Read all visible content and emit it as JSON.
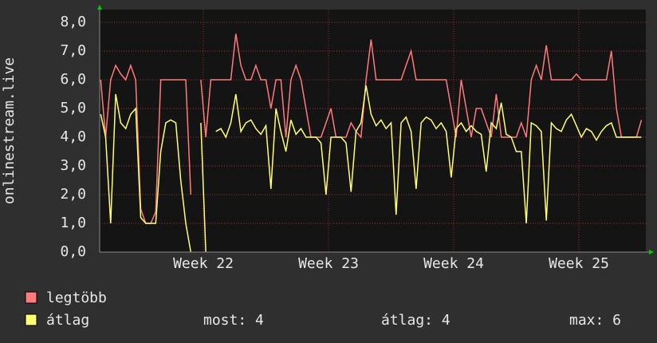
{
  "chart_data": {
    "type": "line",
    "ylabel": "onlinestream.live",
    "xlim": [
      21.172,
      25.535
    ],
    "xticks": [
      {
        "value": 22,
        "label": "Week 22"
      },
      {
        "value": 23,
        "label": "Week 23"
      },
      {
        "value": 24,
        "label": "Week 24"
      },
      {
        "value": 25,
        "label": "Week 25"
      }
    ],
    "ylim": [
      0,
      8
    ],
    "yticks": [
      {
        "value": 0,
        "label": "0,0"
      },
      {
        "value": 1,
        "label": "1,0"
      },
      {
        "value": 2,
        "label": "2,0"
      },
      {
        "value": 3,
        "label": "3,0"
      },
      {
        "value": 4,
        "label": "4,0"
      },
      {
        "value": 5,
        "label": "5,0"
      },
      {
        "value": 6,
        "label": "6,0"
      },
      {
        "value": 7,
        "label": "7,0"
      },
      {
        "value": 8,
        "label": "8,0"
      }
    ],
    "grid": true,
    "x": [
      21.18,
      21.22,
      21.26,
      21.3,
      21.34,
      21.38,
      21.42,
      21.46,
      21.5,
      21.54,
      21.58,
      21.62,
      21.66,
      21.7,
      21.74,
      21.78,
      21.82,
      21.86,
      21.9,
      21.94,
      21.98,
      22.02,
      22.06,
      22.1,
      22.14,
      22.18,
      22.22,
      22.26,
      22.3,
      22.34,
      22.38,
      22.42,
      22.46,
      22.5,
      22.54,
      22.58,
      22.62,
      22.66,
      22.7,
      22.74,
      22.78,
      22.82,
      22.86,
      22.9,
      22.94,
      22.98,
      23.02,
      23.06,
      23.1,
      23.14,
      23.18,
      23.22,
      23.26,
      23.3,
      23.34,
      23.38,
      23.42,
      23.46,
      23.5,
      23.54,
      23.58,
      23.62,
      23.66,
      23.7,
      23.74,
      23.78,
      23.82,
      23.86,
      23.9,
      23.94,
      23.98,
      24.02,
      24.06,
      24.1,
      24.14,
      24.18,
      24.22,
      24.26,
      24.3,
      24.34,
      24.38,
      24.42,
      24.46,
      24.5,
      24.54,
      24.58,
      24.62,
      24.66,
      24.7,
      24.74,
      24.78,
      24.82,
      24.86,
      24.9,
      24.94,
      24.98,
      25.02,
      25.06,
      25.1,
      25.14,
      25.18,
      25.22,
      25.26,
      25.3,
      25.34,
      25.38,
      25.42,
      25.46,
      25.5
    ],
    "series": [
      {
        "name": "legtöbb",
        "color": "#ff7a7a",
        "values": [
          6,
          4,
          6,
          6.5,
          6.2,
          6,
          6.5,
          6,
          1.5,
          1,
          1,
          1.4,
          6,
          6,
          6,
          6,
          6,
          6,
          2,
          null,
          6,
          4,
          6,
          6,
          6,
          6,
          6,
          7.6,
          6.5,
          6,
          6,
          6.5,
          6,
          6,
          5,
          6,
          6,
          4,
          6,
          6.5,
          6,
          5,
          4,
          4,
          4,
          4.5,
          5,
          4,
          4,
          4,
          4.5,
          4.2,
          4,
          6,
          7.4,
          6,
          6,
          6,
          6,
          6,
          6,
          6.5,
          7,
          6,
          6,
          6,
          6,
          6,
          6,
          6,
          5,
          4,
          6,
          5,
          4,
          5,
          5,
          4.5,
          4,
          5.5,
          4,
          4,
          4,
          4,
          4.5,
          4,
          6,
          6.5,
          6,
          7.2,
          6,
          6,
          6,
          6,
          6,
          6.2,
          6,
          6,
          6,
          6,
          6,
          6,
          7,
          5,
          4,
          4,
          4,
          4,
          4.6
        ]
      },
      {
        "name": "átlag",
        "color": "#ffff70",
        "values": [
          4.8,
          4,
          1,
          5.5,
          4.5,
          4.3,
          4.8,
          5,
          1.2,
          1,
          1,
          1,
          3.5,
          4.5,
          4.6,
          4.5,
          2.5,
          1,
          0,
          null,
          4.5,
          0,
          null,
          4.2,
          4.3,
          4,
          4.5,
          5.5,
          4.2,
          4.5,
          4.6,
          4.3,
          4.1,
          4.4,
          2.2,
          5,
          4.2,
          3.5,
          4.6,
          4.1,
          4.3,
          4,
          4,
          4,
          3.8,
          2,
          4,
          4,
          4,
          3.8,
          2.1,
          4.2,
          4.5,
          5.8,
          4.8,
          4.4,
          4.6,
          4.3,
          4.5,
          1.3,
          4.5,
          4.7,
          4.2,
          2.2,
          4.5,
          4.7,
          4.6,
          4.3,
          4.5,
          4.2,
          2.6,
          4.3,
          4.5,
          4.2,
          4.4,
          4.2,
          4.1,
          2.8,
          4.5,
          4.3,
          5.2,
          4.1,
          4,
          3.5,
          3.5,
          1,
          4.5,
          4.4,
          4.2,
          1.1,
          4.5,
          4.3,
          4.2,
          4.6,
          4.8,
          4.4,
          4,
          4.3,
          4.2,
          3.9,
          4.2,
          4.4,
          4.5,
          4,
          4,
          4,
          4,
          4,
          4
        ]
      }
    ],
    "stats": [
      "most: 4",
      "átlag: 4",
      "max: 6"
    ]
  }
}
